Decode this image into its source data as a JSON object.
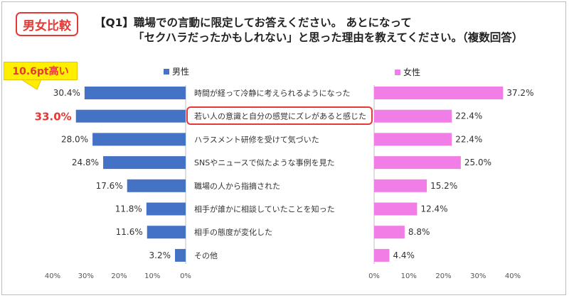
{
  "badge": "男女比較",
  "question": {
    "line1": "【Q1】職場での言動に限定してお答えください。 あとになって",
    "line2": "「セクハラだったかもしれない」と思った理由を教えてください。（複数回答）"
  },
  "callout": "10.6pt高い",
  "colors": {
    "male": "#4472c4",
    "female": "#f07ee6",
    "accent": "#e53935",
    "callout": "#ffee00"
  },
  "chart_data": {
    "type": "bar",
    "orientation": "horizontal-butterfly",
    "categories": [
      "時間が経って冷静に考えられるようになった",
      "若い人の意識と自分の感覚にズレがあると感じた",
      "ハラスメント研修を受けて気づいた",
      "SNSやニュースで似たような事例を見た",
      "職場の人から指摘された",
      "相手が誰かに相談していたことを知った",
      "相手の態度が変化した",
      "その他"
    ],
    "series": [
      {
        "name": "男性",
        "values": [
          30.4,
          33.0,
          28.0,
          24.8,
          17.6,
          11.8,
          11.6,
          3.2
        ],
        "labels": [
          "30.4%",
          "33.0%",
          "28.0%",
          "24.8%",
          "17.6%",
          "11.8%",
          "11.6%",
          "3.2%"
        ]
      },
      {
        "name": "女性",
        "values": [
          37.2,
          22.4,
          22.4,
          25.0,
          15.2,
          12.4,
          8.8,
          4.4
        ],
        "labels": [
          "37.2%",
          "22.4%",
          "22.4%",
          "25.0%",
          "15.2%",
          "12.4%",
          "8.8%",
          "4.4%"
        ]
      }
    ],
    "highlight_index": 1,
    "male_axis_ticks": [
      "40%",
      "30%",
      "20%",
      "10%",
      "0%"
    ],
    "female_axis_ticks": [
      "0%",
      "10%",
      "20%",
      "30%",
      "40%"
    ],
    "xlim": [
      0,
      40
    ],
    "grid": false
  }
}
